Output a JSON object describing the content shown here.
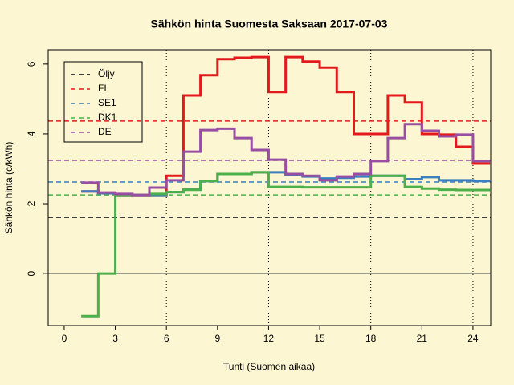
{
  "chart_data": {
    "type": "step",
    "title": "Sähkön hinta Suomesta Saksaan 2017-07-03",
    "x_label": "Tunti (Suomen aikaa)",
    "y_label": "Sähkön hinta (c/kWh)",
    "x": [
      1,
      2,
      3,
      4,
      5,
      6,
      7,
      8,
      9,
      10,
      11,
      12,
      13,
      14,
      15,
      16,
      17,
      18,
      19,
      20,
      21,
      22,
      23,
      24,
      25
    ],
    "series": [
      {
        "color": "#e31a1c",
        "values": [
          2.35,
          2.3,
          2.25,
          2.25,
          2.25,
          2.8,
          5.1,
          5.68,
          6.14,
          6.18,
          6.2,
          5.2,
          6.2,
          6.07,
          5.9,
          5.2,
          4.0,
          4.0,
          5.1,
          4.9,
          4.0,
          3.98,
          3.63,
          3.15,
          3.15
        ]
      },
      {
        "color": "#3a7fbf",
        "values": [
          2.35,
          2.3,
          2.25,
          2.25,
          2.25,
          2.33,
          2.4,
          2.65,
          2.85,
          2.85,
          2.9,
          2.9,
          2.83,
          2.78,
          2.72,
          2.74,
          2.78,
          2.8,
          2.8,
          2.7,
          2.76,
          2.67,
          2.67,
          2.65,
          2.65
        ]
      },
      {
        "color": "#4daf4a",
        "values": [
          -1.22,
          0,
          2.25,
          2.25,
          2.28,
          2.33,
          2.4,
          2.65,
          2.85,
          2.85,
          2.9,
          2.48,
          2.48,
          2.47,
          2.47,
          2.47,
          2.47,
          2.8,
          2.8,
          2.48,
          2.43,
          2.4,
          2.39,
          2.39,
          2.39
        ]
      },
      {
        "color": "#984ea3",
        "values": [
          2.6,
          2.32,
          2.28,
          2.25,
          2.46,
          2.67,
          3.49,
          4.11,
          4.15,
          3.88,
          3.54,
          3.26,
          2.85,
          2.8,
          2.67,
          2.78,
          2.85,
          3.22,
          3.88,
          4.28,
          4.09,
          3.93,
          3.98,
          3.22,
          3.22
        ]
      }
    ],
    "reference_lines": [
      {
        "name": "Öljy",
        "color": "#000000",
        "value": 1.61
      },
      {
        "name": "FI",
        "color": "#e31a1c",
        "value": 4.37
      },
      {
        "name": "SE1",
        "color": "#3a7fbf",
        "value": 2.62
      },
      {
        "name": "DK1",
        "color": "#4daf4a",
        "value": 2.25
      },
      {
        "name": "DE",
        "color": "#984ea3",
        "value": 3.24
      }
    ],
    "hline": 0,
    "vlines": [
      6,
      12,
      18,
      24
    ],
    "xlim": [
      -0.94,
      25.04
    ],
    "ylim": [
      -1.49,
      6.41
    ],
    "xticks": [
      0,
      3,
      6,
      9,
      12,
      15,
      18,
      21,
      24
    ],
    "yticks": [
      0,
      2,
      4,
      6
    ],
    "legend": "top-left"
  }
}
